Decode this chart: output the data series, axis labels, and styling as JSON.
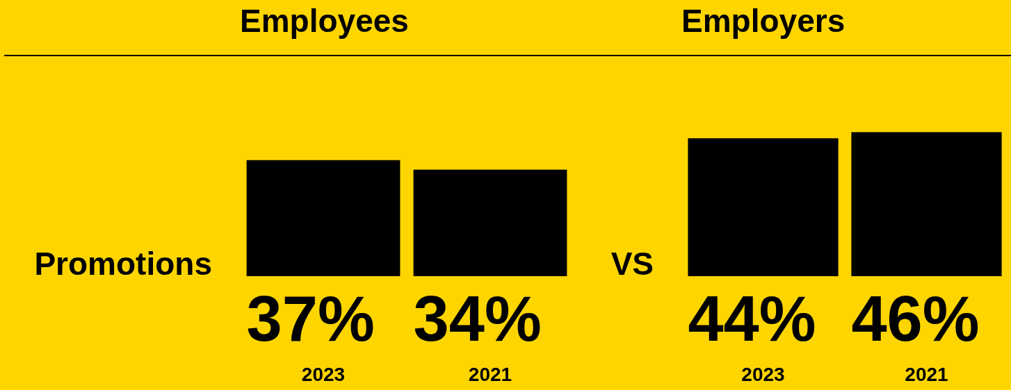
{
  "chart_data": [
    {
      "type": "bar",
      "title": "Employees",
      "ylabel": "Promotions",
      "categories": [
        "2023",
        "2021"
      ],
      "values": [
        37,
        34
      ],
      "value_labels": [
        "37%",
        "34%"
      ],
      "color": "#000000",
      "tick_labels": "x",
      "grid": false,
      "legend": false
    },
    {
      "type": "bar",
      "title": "Employers",
      "annotations": [
        "VS"
      ],
      "categories": [
        "2023",
        "2021"
      ],
      "values": [
        44,
        46
      ],
      "value_labels": [
        "44%",
        "46%"
      ],
      "color": "#000000",
      "tick_labels": "x",
      "grid": false,
      "legend": false
    }
  ]
}
